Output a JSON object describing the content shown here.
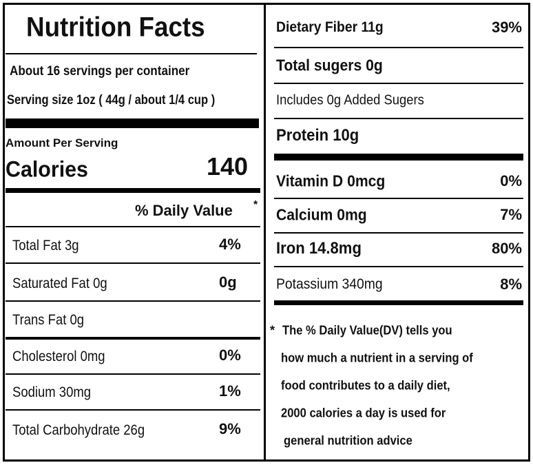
{
  "title": "Nutrition Facts",
  "servings": "About 16 servings per container",
  "serving_size": "Serving size 1oz ( 44g / about 1/4 cup )",
  "amount_per_serving": "Amount Per Serving",
  "calories": {
    "label": "Calories",
    "value": 140
  },
  "daily_value_header": "% Daily Value",
  "asterisk": "*",
  "left_rows": [
    {
      "label": "Total Fat  3g",
      "value": "4%"
    },
    {
      "label": "Saturated Fat 0g",
      "value": "0g"
    },
    {
      "label": "Trans Fat 0g"
    },
    {
      "label": "Cholesterol  0mg",
      "value": "0%"
    },
    {
      "label": "Sodium  30mg",
      "value": "1%"
    },
    {
      "label": "Total Carbohydrate  26g",
      "value": "9%"
    }
  ],
  "right_rows": [
    {
      "label": "Dietary Fiber  11g",
      "value": "39%"
    },
    {
      "label": "Total sugers 0g"
    },
    {
      "label": "Includes 0g Added Sugers"
    },
    {
      "label": "Protein 10g"
    },
    {
      "label": "Vitamin D 0mcg",
      "value": "0%"
    },
    {
      "label": "Calcium   0mg",
      "value": "7%"
    },
    {
      "label": "Iron  14.8mg",
      "value": "80%"
    },
    {
      "label": "Potassium  340mg",
      "value": "8%"
    }
  ],
  "footnote": [
    "The % Daily Value(DV)  tells you",
    "how much a nutrient in a serving of",
    "food contributes to a daily diet,",
    "2000 calories a day is used for",
    "general nutrition advice"
  ]
}
